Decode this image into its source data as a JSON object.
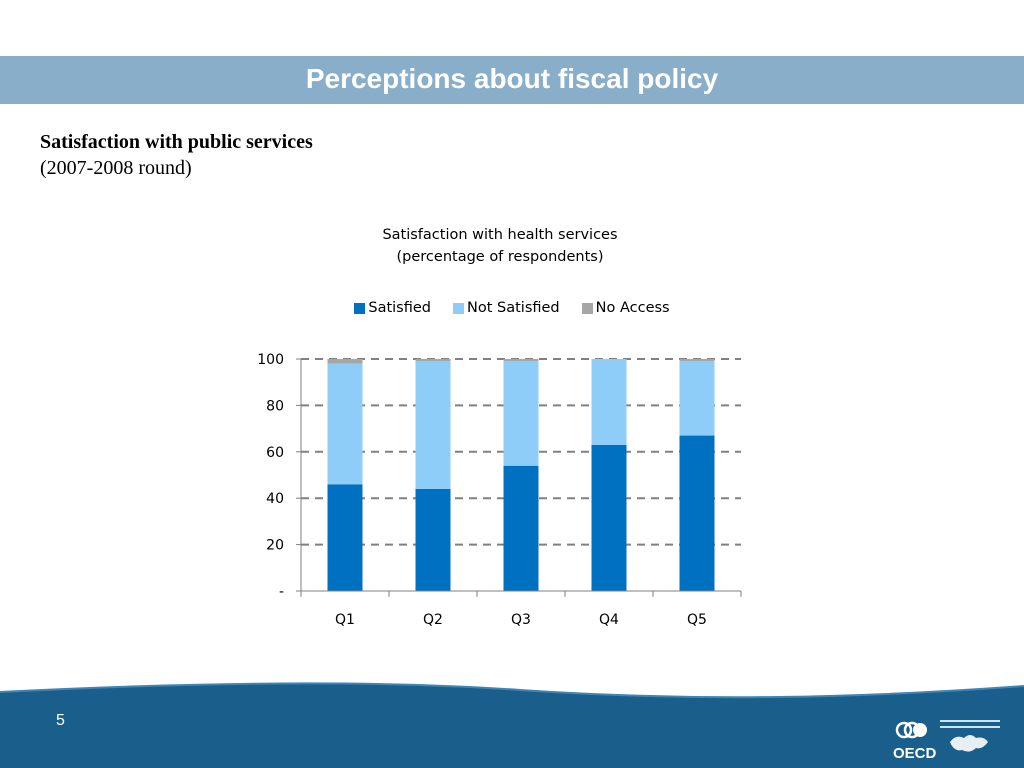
{
  "slide": {
    "title": "Perceptions about fiscal policy",
    "subtitle_bold": "Satisfaction with public services",
    "subtitle_round": "(2007-2008 round)",
    "page_number": "5",
    "logo_text": "OECD"
  },
  "colors": {
    "title_bar": "#88aec9",
    "satisfied": "#0070c0",
    "not_satisfied": "#8dcdf7",
    "no_access": "#a6a6a6",
    "footer": "#1a5f8c"
  },
  "chart_data": {
    "type": "bar",
    "stacked": true,
    "title": "Satisfaction with health services",
    "subtitle": "(percentage of respondents)",
    "categories": [
      "Q1",
      "Q2",
      "Q3",
      "Q4",
      "Q5"
    ],
    "series": [
      {
        "name": "Satisfied",
        "values": [
          46,
          44,
          54,
          63,
          67
        ]
      },
      {
        "name": "Not Satisfied",
        "values": [
          52,
          55,
          45,
          37,
          32
        ]
      },
      {
        "name": "No Access",
        "values": [
          2,
          1,
          1,
          0,
          1
        ]
      }
    ],
    "ylim": [
      0,
      100
    ],
    "yticks": [
      {
        "value": 0,
        "label": "-"
      },
      {
        "value": 20,
        "label": "20"
      },
      {
        "value": 40,
        "label": "40"
      },
      {
        "value": 60,
        "label": "60"
      },
      {
        "value": 80,
        "label": "80"
      },
      {
        "value": 100,
        "label": "100"
      }
    ],
    "grid": true,
    "legend_position": "top"
  }
}
